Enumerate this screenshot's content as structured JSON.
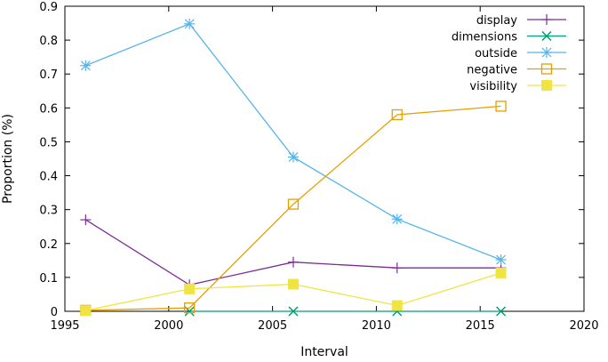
{
  "chart_data": {
    "type": "line",
    "xlabel": "Interval",
    "ylabel": "Proportion (%)",
    "xlim": [
      1995,
      2020
    ],
    "ylim": [
      0,
      0.9
    ],
    "x_ticks": [
      1995,
      2000,
      2005,
      2010,
      2015,
      2020
    ],
    "y_ticks": [
      0,
      0.1,
      0.2,
      0.3,
      0.4,
      0.5,
      0.6,
      0.7,
      0.8,
      0.9
    ],
    "grid": false,
    "legend_position": "top-right",
    "series": [
      {
        "name": "display",
        "color": "#7b2d96",
        "marker": "plus",
        "x": [
          1996,
          2001,
          2006,
          2011,
          2016
        ],
        "y": [
          0.27,
          0.078,
          0.145,
          0.128,
          0.128
        ]
      },
      {
        "name": "dimensions",
        "color": "#009e73",
        "marker": "cross",
        "x": [
          2001,
          2006,
          2011,
          2016
        ],
        "y": [
          0,
          0,
          0,
          0
        ]
      },
      {
        "name": "outside",
        "color": "#56b4e9",
        "marker": "star",
        "x": [
          1996,
          2001,
          2006,
          2011,
          2016
        ],
        "y": [
          0.725,
          0.848,
          0.455,
          0.272,
          0.152
        ]
      },
      {
        "name": "negative",
        "color": "#e69f00",
        "marker": "open-square",
        "x": [
          1996,
          2001,
          2006,
          2011,
          2016
        ],
        "y": [
          0.003,
          0.01,
          0.316,
          0.58,
          0.605
        ]
      },
      {
        "name": "visibility",
        "color": "#f0e442",
        "marker": "filled-square",
        "x": [
          1996,
          2001,
          2006,
          2011,
          2016
        ],
        "y": [
          0.002,
          0.066,
          0.08,
          0.017,
          0.113
        ]
      }
    ]
  }
}
